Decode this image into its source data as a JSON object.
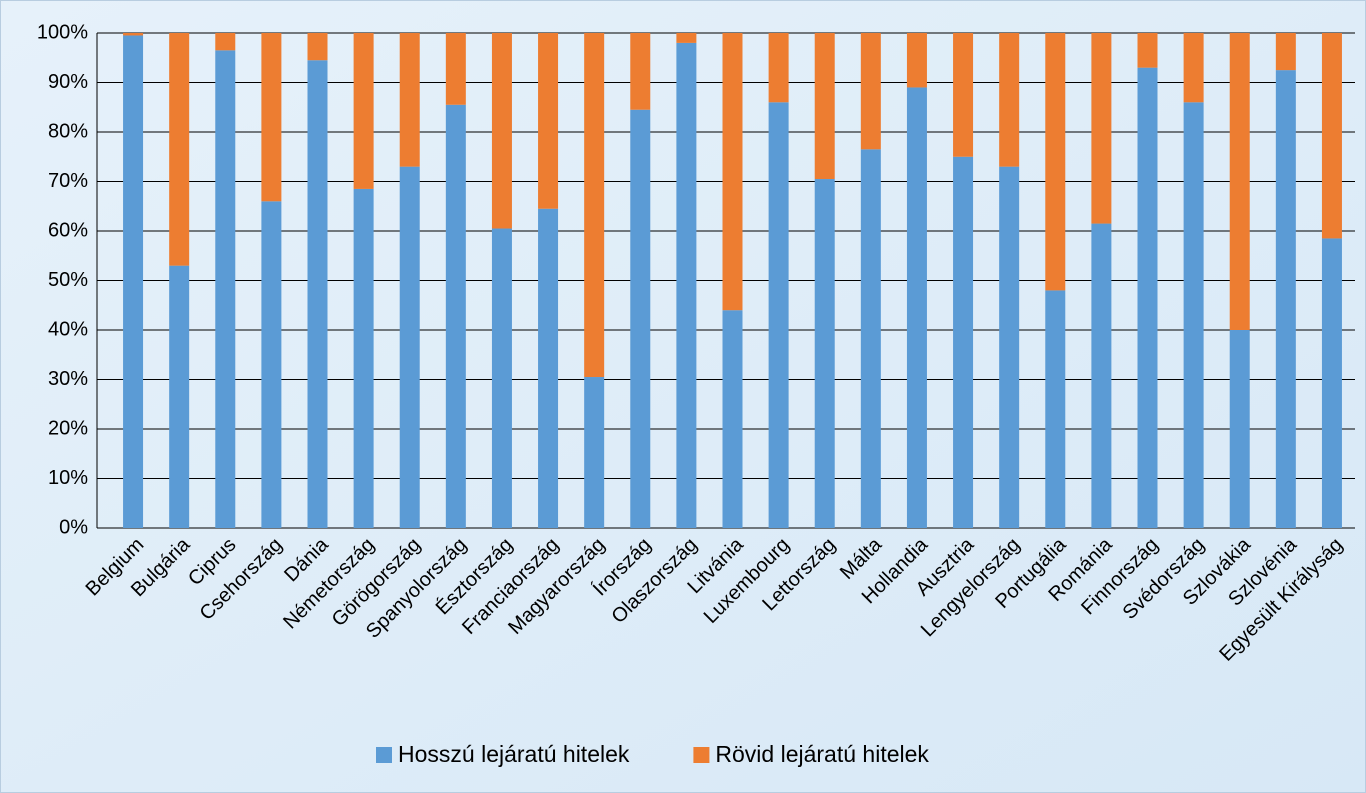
{
  "chart_data": {
    "type": "stacked_bar",
    "categories": [
      "Belgium",
      "Bulgária",
      "Ciprus",
      "Csehország",
      "Dánia",
      "Németország",
      "Görögország",
      "Spanyolország",
      "Észtország",
      "Franciaország",
      "Magyarország",
      "Írország",
      "Olaszország",
      "Litvánia",
      "Luxembourg",
      "Lettország",
      "Málta",
      "Hollandia",
      "Ausztria",
      "Lengyelország",
      "Portugália",
      "Románia",
      "Finnország",
      "Svédország",
      "Szlovákia",
      "Szlovénia",
      "Egyesült Királyság"
    ],
    "series": [
      {
        "name": "Hosszú lejáratú hitelek",
        "color": "#5b9bd5",
        "values": [
          99.5,
          53,
          96.5,
          66,
          94.5,
          68.5,
          73,
          85.5,
          60.5,
          64.5,
          30.5,
          84.5,
          98,
          44,
          86,
          70.5,
          76.5,
          89,
          75,
          73,
          48,
          61.5,
          93,
          86,
          40,
          92.5,
          58.5
        ]
      },
      {
        "name": "Rövid lejáratú hitelek",
        "color": "#ed7d31",
        "values": [
          0.5,
          47,
          3.5,
          34,
          5.5,
          31.5,
          27,
          14.5,
          39.5,
          35.5,
          69.5,
          15.5,
          2,
          56,
          14,
          29.5,
          23.5,
          11,
          25,
          27,
          52,
          38.5,
          7,
          14,
          60,
          7.5,
          41.5
        ]
      }
    ],
    "ylim": [
      0,
      100
    ],
    "yticks": [
      {
        "value": 0,
        "label": "0%"
      },
      {
        "value": 10,
        "label": "10%"
      },
      {
        "value": 20,
        "label": "20%"
      },
      {
        "value": 30,
        "label": "30%"
      },
      {
        "value": 40,
        "label": "40%"
      },
      {
        "value": 50,
        "label": "50%"
      },
      {
        "value": 60,
        "label": "60%"
      },
      {
        "value": 70,
        "label": "70%"
      },
      {
        "value": 80,
        "label": "80%"
      },
      {
        "value": 90,
        "label": "90%"
      },
      {
        "value": 100,
        "label": "100%"
      }
    ],
    "grid": true,
    "legend": "bottom"
  }
}
